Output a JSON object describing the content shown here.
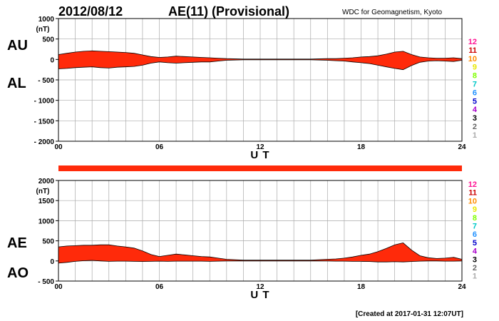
{
  "header": {
    "date": "2012/08/12",
    "title": "AE(11) (Provisional)",
    "source": "WDC for Geomagnetism, Kyoto"
  },
  "footer": {
    "created": "[Created at 2017-01-31 12:07UT]"
  },
  "colors": {
    "fill": "#ff2a0a",
    "outline": "#000000",
    "grid": "#aaaaaa",
    "legend": [
      "#ff1493",
      "#cc0000",
      "#ff8c00",
      "#e8e800",
      "#7fff00",
      "#00c8c8",
      "#1e90ff",
      "#0000cc",
      "#aa00cc",
      "#000000",
      "#666666",
      "#aaaaaa"
    ]
  },
  "station_legend": [
    "12",
    "11",
    "10",
    "9",
    "8",
    "7",
    "6",
    "5",
    "4",
    "3",
    "2",
    "1"
  ],
  "chart_data": [
    {
      "type": "area",
      "series": [
        {
          "name": "AU",
          "x": [
            0,
            0.5,
            1,
            1.5,
            2,
            2.5,
            3,
            3.5,
            4,
            4.5,
            5,
            5.5,
            6,
            6.5,
            7,
            7.5,
            8,
            8.5,
            9,
            9.5,
            10,
            11,
            12,
            13,
            14,
            15,
            16,
            16.5,
            17,
            17.5,
            18,
            18.5,
            19,
            19.5,
            20,
            20.5,
            21,
            21.5,
            22,
            22.5,
            23,
            23.5,
            24
          ],
          "values": [
            120,
            150,
            180,
            200,
            210,
            200,
            190,
            180,
            170,
            150,
            110,
            70,
            50,
            60,
            80,
            70,
            60,
            50,
            40,
            30,
            20,
            10,
            10,
            10,
            10,
            10,
            20,
            20,
            30,
            40,
            60,
            70,
            90,
            130,
            180,
            200,
            120,
            60,
            40,
            30,
            30,
            40,
            20
          ]
        },
        {
          "name": "AL",
          "x": [
            0,
            0.5,
            1,
            1.5,
            2,
            2.5,
            3,
            3.5,
            4,
            4.5,
            5,
            5.5,
            6,
            6.5,
            7,
            7.5,
            8,
            8.5,
            9,
            9.5,
            10,
            11,
            12,
            13,
            14,
            15,
            16,
            16.5,
            17,
            17.5,
            18,
            18.5,
            19,
            19.5,
            20,
            20.5,
            21,
            21.5,
            22,
            22.5,
            23,
            23.5,
            24
          ],
          "values": [
            -230,
            -220,
            -200,
            -190,
            -180,
            -200,
            -210,
            -190,
            -180,
            -170,
            -140,
            -90,
            -60,
            -80,
            -90,
            -80,
            -70,
            -60,
            -60,
            -40,
            -20,
            -10,
            -10,
            -10,
            -10,
            -10,
            -20,
            -30,
            -40,
            -60,
            -80,
            -100,
            -140,
            -180,
            -220,
            -250,
            -150,
            -70,
            -40,
            -30,
            -40,
            -50,
            -20
          ]
        }
      ],
      "xlabel": "U T",
      "ylabel": "(nT)",
      "xlim": [
        0,
        24
      ],
      "ylim": [
        -2000,
        1000
      ],
      "x_ticks": [
        "00",
        "06",
        "12",
        "18",
        "24"
      ],
      "y_ticks": [
        "1000",
        "500",
        "0",
        "- 500",
        "- 1000",
        "- 1500",
        "- 2000"
      ],
      "y_tick_values": [
        1000,
        500,
        0,
        -500,
        -1000,
        -1500,
        -2000
      ],
      "grid": true
    },
    {
      "type": "area",
      "series": [
        {
          "name": "AE",
          "x": [
            0,
            0.5,
            1,
            1.5,
            2,
            2.5,
            3,
            3.5,
            4,
            4.5,
            5,
            5.5,
            6,
            6.5,
            7,
            7.5,
            8,
            8.5,
            9,
            9.5,
            10,
            11,
            12,
            13,
            14,
            15,
            16,
            16.5,
            17,
            17.5,
            18,
            18.5,
            19,
            19.5,
            20,
            20.5,
            21,
            21.5,
            22,
            22.5,
            23,
            23.5,
            24
          ],
          "values": [
            350,
            370,
            380,
            390,
            390,
            400,
            400,
            370,
            350,
            320,
            250,
            160,
            110,
            140,
            170,
            150,
            130,
            110,
            100,
            70,
            40,
            20,
            20,
            20,
            20,
            20,
            40,
            50,
            70,
            100,
            140,
            170,
            230,
            310,
            400,
            450,
            270,
            130,
            80,
            60,
            70,
            90,
            40
          ]
        },
        {
          "name": "AO",
          "x": [
            0,
            0.5,
            1,
            1.5,
            2,
            2.5,
            3,
            3.5,
            4,
            4.5,
            5,
            5.5,
            6,
            6.5,
            7,
            7.5,
            8,
            8.5,
            9,
            9.5,
            10,
            11,
            12,
            13,
            14,
            15,
            16,
            16.5,
            17,
            17.5,
            18,
            18.5,
            19,
            19.5,
            20,
            20.5,
            21,
            21.5,
            22,
            22.5,
            23,
            23.5,
            24
          ],
          "values": [
            -55,
            -35,
            -10,
            5,
            15,
            0,
            -10,
            -5,
            -5,
            -10,
            -15,
            -10,
            -5,
            -10,
            -5,
            -5,
            -5,
            -5,
            -10,
            -5,
            0,
            0,
            0,
            0,
            0,
            0,
            0,
            -5,
            -5,
            -10,
            -10,
            -15,
            -25,
            -25,
            -20,
            -25,
            -15,
            -5,
            0,
            0,
            -5,
            -5,
            0
          ]
        }
      ],
      "xlabel": "U T",
      "ylabel": "(nT)",
      "xlim": [
        0,
        24
      ],
      "ylim": [
        -500,
        2000
      ],
      "x_ticks": [
        "00",
        "06",
        "12",
        "18",
        "24"
      ],
      "y_ticks": [
        "2000",
        "1500",
        "1000",
        "500",
        "0",
        "- 500"
      ],
      "y_tick_values": [
        2000,
        1500,
        1000,
        500,
        0,
        -500
      ],
      "grid": true
    }
  ]
}
